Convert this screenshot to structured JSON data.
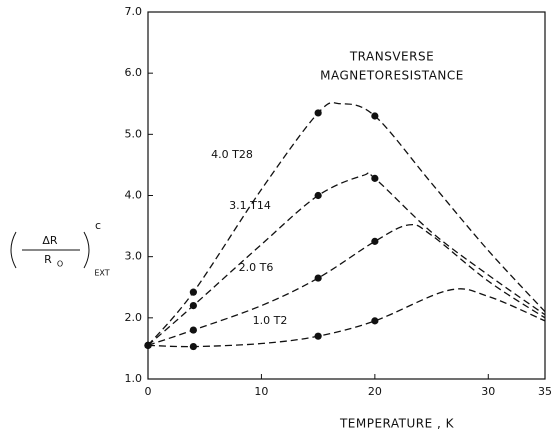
{
  "chart_data": {
    "type": "line",
    "title": [
      "TRANSVERSE",
      "MAGNETORESISTANCE"
    ],
    "xlabel": "TEMPERATURE , K",
    "ylabel": {
      "numerator": "ΔR",
      "denominator": "R",
      "denominator_sub": "O",
      "superscript": "c",
      "subscript": "EXT"
    },
    "xlim": [
      0,
      35
    ],
    "ylim": [
      1.0,
      7.0
    ],
    "xticks": [
      0,
      10,
      20,
      30,
      35
    ],
    "yticks": [
      {
        "value": 1,
        "label": "1.0"
      },
      {
        "value": 2,
        "label": "2.0"
      },
      {
        "value": 3,
        "label": "3.0"
      },
      {
        "value": 4,
        "label": "4.0"
      },
      {
        "value": 5,
        "label": "5.0"
      },
      {
        "value": 6,
        "label": "6.0"
      },
      {
        "value": 7,
        "label": "7.0"
      }
    ],
    "color": "#111111",
    "series": [
      {
        "name": "4.0 T28",
        "x": [
          0,
          4,
          10,
          15,
          17,
          20,
          25,
          30,
          35
        ],
        "values": [
          1.55,
          2.42,
          4.1,
          5.35,
          5.5,
          5.3,
          4.2,
          3.1,
          2.1
        ],
        "points_x": [
          0,
          4,
          15,
          20
        ],
        "points": [
          1.55,
          2.42,
          5.35,
          5.3
        ]
      },
      {
        "name": "3.1 T14",
        "x": [
          0,
          4,
          10,
          15,
          19,
          20,
          25,
          30,
          35
        ],
        "values": [
          1.55,
          2.2,
          3.2,
          4.0,
          4.33,
          4.28,
          3.4,
          2.7,
          2.05
        ],
        "points_x": [
          0,
          4,
          15,
          20
        ],
        "points": [
          1.55,
          2.2,
          4.0,
          4.28
        ]
      },
      {
        "name": "2.0 T6",
        "x": [
          0,
          4,
          10,
          15,
          20,
          23,
          25,
          30,
          35
        ],
        "values": [
          1.55,
          1.8,
          2.2,
          2.65,
          3.25,
          3.52,
          3.35,
          2.6,
          2.0
        ],
        "points_x": [
          0,
          4,
          15,
          20
        ],
        "points": [
          1.55,
          1.8,
          2.65,
          3.25
        ]
      },
      {
        "name": "1.0 T2",
        "x": [
          0,
          4,
          10,
          15,
          20,
          26.5,
          30,
          35
        ],
        "values": [
          1.55,
          1.53,
          1.58,
          1.7,
          1.95,
          2.45,
          2.35,
          1.95
        ],
        "points_x": [
          0,
          4,
          15,
          20
        ],
        "points": [
          1.55,
          1.53,
          1.7,
          1.95
        ]
      }
    ]
  }
}
